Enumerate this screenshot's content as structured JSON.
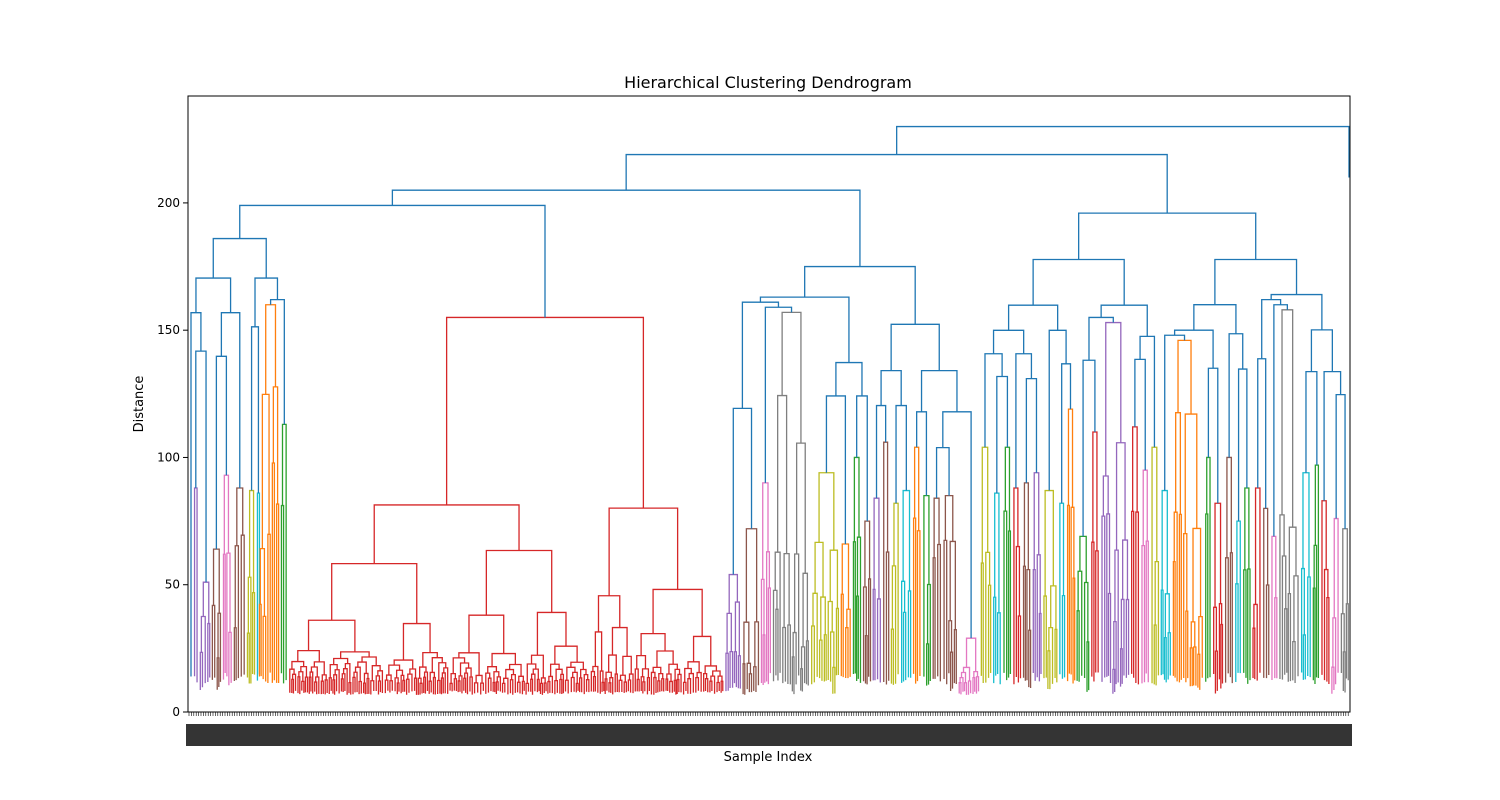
{
  "chart_data": {
    "type": "dendrogram",
    "title": "Hierarchical Clustering Dendrogram",
    "xlabel": "Sample Index",
    "ylabel": "Distance",
    "ylim": [
      0,
      242
    ],
    "yticks": [
      0,
      50,
      100,
      150,
      200
    ],
    "grid": false,
    "legend": "none",
    "colors": {
      "link_above_threshold": "#1f77b4",
      "cluster_palette": [
        "#d62728",
        "#ff7f0e",
        "#2ca02c",
        "#9467bd",
        "#8c564b",
        "#e377c2",
        "#7f7f7f",
        "#bcbd22",
        "#17becf"
      ]
    },
    "leaf_tick_labels_legible": false,
    "root_merge_distance": 230,
    "major_merges": [
      {
        "cluster": "red",
        "color": "#d62728",
        "height": 155
      },
      {
        "cluster": "left",
        "color": "#1f77b4",
        "height": 199
      },
      {
        "cluster": "middle",
        "color": "#1f77b4",
        "height": 205
      },
      {
        "cluster": "right",
        "color": "#1f77b4",
        "height": 219
      },
      {
        "cluster": "orange-right",
        "color": "#ff7f0e",
        "height": 146
      },
      {
        "cluster": "purple-right",
        "color": "#9467bd",
        "height": 153
      },
      {
        "cluster": "gray-middle",
        "color": "#7f7f7f",
        "height": 157
      },
      {
        "cluster": "gray-right",
        "color": "#7f7f7f",
        "height": 158
      },
      {
        "cluster": "orange-left",
        "color": "#ff7f0e",
        "height": 160
      }
    ]
  }
}
